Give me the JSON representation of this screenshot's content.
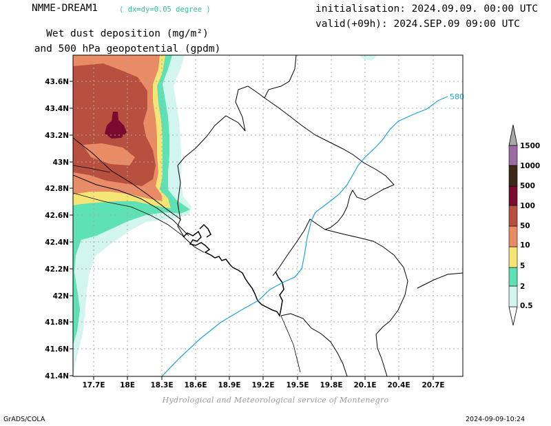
{
  "header": {
    "model": "NMME-DREAM1",
    "resolution": "( dx=dy=0.05 degree )",
    "title_line1": "Wet dust deposition (mg/m²)",
    "title_line2": "and 500 hPa geopotential (gpdm)",
    "init": "initialisation: 2024.09.09. 00:00 UTC",
    "valid": "valid(+09h): 2024.SEP.09 09:00 UTC"
  },
  "map": {
    "lat_ticks": [
      "43.6N",
      "43.4N",
      "43.2N",
      "43N",
      "42.8N",
      "42.6N",
      "42.4N",
      "42.2N",
      "42N",
      "41.8N",
      "41.6N",
      "41.4N"
    ],
    "lon_ticks": [
      "17.7E",
      "18E",
      "18.3E",
      "18.6E",
      "18.9E",
      "19.2E",
      "19.5E",
      "19.8E",
      "20.1E",
      "20.4E",
      "20.7E"
    ],
    "contour_label": "580",
    "colors": {
      "contour": "#1ea0e6",
      "border": "#000000",
      "grid": "#a8a8a8"
    }
  },
  "legend": {
    "levels": [
      {
        "label": "0.5",
        "color": "#d2f5ee"
      },
      {
        "label": "2",
        "color": "#5ee1b5"
      },
      {
        "label": "5",
        "color": "#f5e574"
      },
      {
        "label": "10",
        "color": "#e98c66"
      },
      {
        "label": "50",
        "color": "#b8503f"
      },
      {
        "label": "100",
        "color": "#7a0b30"
      },
      {
        "label": "500",
        "color": "#3c2a14"
      },
      {
        "label": "1000",
        "color": "#9c6aa2"
      },
      {
        "label": "1500",
        "color": "#a8a8a8"
      }
    ]
  },
  "footer": {
    "credit": "Hydrological and Meteorological service of Montenegro",
    "software": "GrADS/COLA",
    "timestamp": "2024-09-09-10:24"
  }
}
